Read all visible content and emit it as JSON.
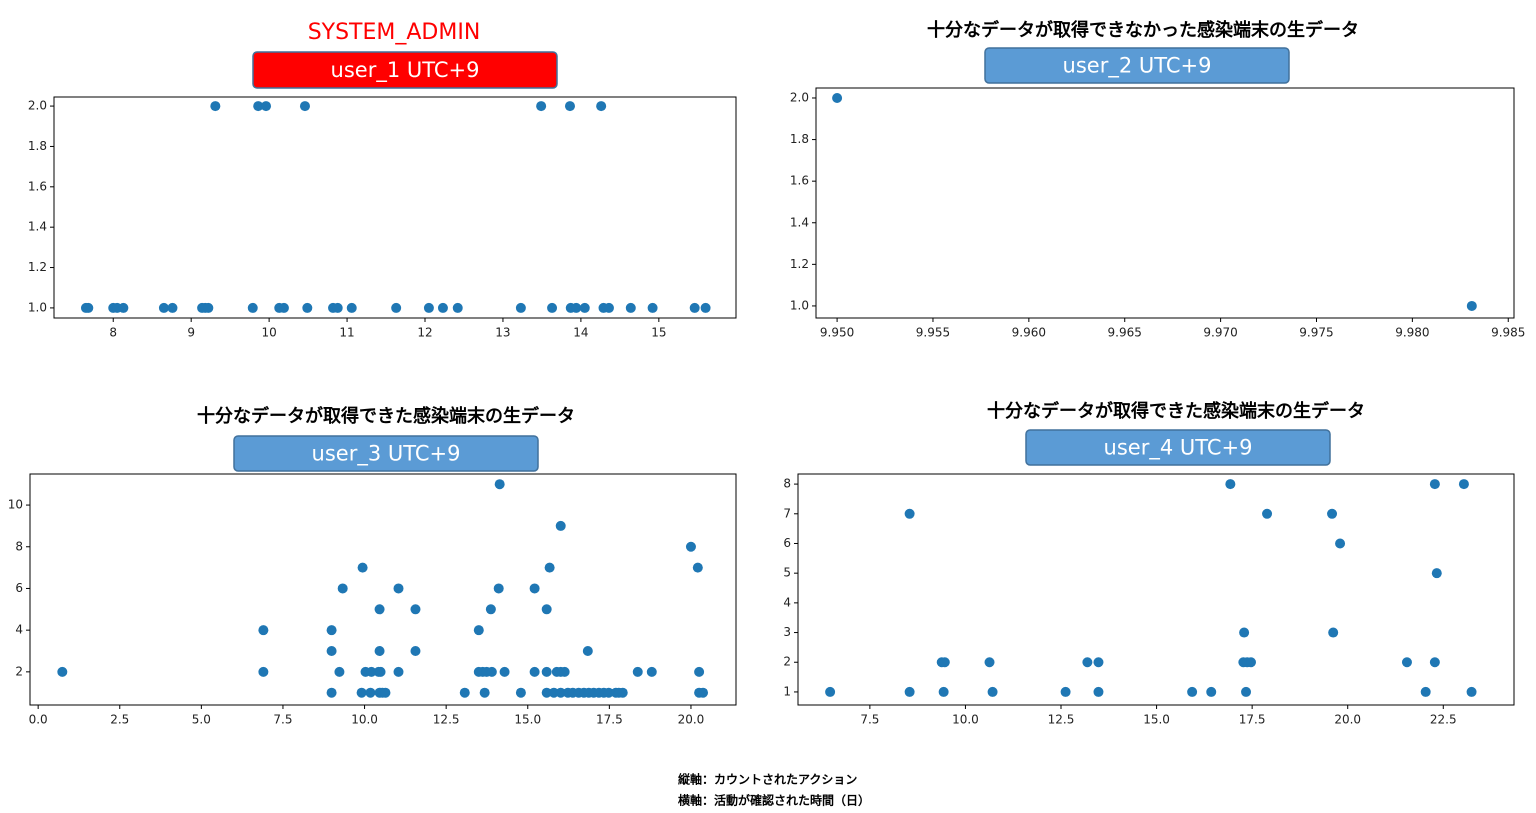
{
  "chart_data": [
    {
      "type": "scatter",
      "title": "SYSTEM_ADMIN",
      "title_color": "#ff0000",
      "subtitle": "user_1 UTC+9",
      "badge_color": "#ff0000",
      "color": "#1f77b4",
      "x": [
        9.31,
        9.86,
        9.96,
        10.46,
        13.49,
        13.86,
        14.26,
        7.65,
        7.68,
        8.0,
        8.05,
        8.13,
        8.65,
        8.76,
        9.14,
        9.18,
        9.22,
        9.79,
        10.13,
        10.19,
        10.49,
        10.82,
        10.88,
        11.06,
        11.63,
        12.05,
        12.23,
        12.42,
        13.23,
        13.63,
        13.87,
        13.94,
        14.05,
        14.29,
        14.36,
        14.64,
        14.92,
        15.46,
        15.6
      ],
      "values": [
        2,
        2,
        2,
        2,
        2,
        2,
        2,
        1,
        1,
        1,
        1,
        1,
        1,
        1,
        1,
        1,
        1,
        1,
        1,
        1,
        1,
        1,
        1,
        1,
        1,
        1,
        1,
        1,
        1,
        1,
        1,
        1,
        1,
        1,
        1,
        1,
        1,
        1,
        1
      ],
      "xlim": [
        7.24,
        15.99
      ],
      "xticks": [
        8,
        9,
        10,
        11,
        12,
        13,
        14,
        15
      ],
      "ylim": [
        0.95,
        2.045
      ],
      "yticks": [
        {
          "value": 1,
          "label": "1.0"
        },
        {
          "value": 1.2,
          "label": "1.2"
        },
        {
          "value": 1.4,
          "label": "1.4"
        },
        {
          "value": 1.6,
          "label": "1.6"
        },
        {
          "value": 1.8,
          "label": "1.8"
        },
        {
          "value": 2,
          "label": "2.0"
        }
      ]
    },
    {
      "type": "scatter",
      "title": "十分なデータが取得できなかった感染端末の生データ",
      "title_color": "#000000",
      "subtitle": "user_2 UTC+9",
      "badge_color": "#5b9bd5",
      "color": "#1f77b4",
      "x": [
        9.95,
        9.9831
      ],
      "values": [
        2,
        1
      ],
      "xlim": [
        9.9489,
        9.9853
      ],
      "xticks": [
        {
          "value": 9.95,
          "label": "9.950"
        },
        {
          "value": 9.955,
          "label": "9.955"
        },
        {
          "value": 9.96,
          "label": "9.960"
        },
        {
          "value": 9.965,
          "label": "9.965"
        },
        {
          "value": 9.97,
          "label": "9.970"
        },
        {
          "value": 9.975,
          "label": "9.975"
        },
        {
          "value": 9.98,
          "label": "9.980"
        },
        {
          "value": 9.985,
          "label": "9.985"
        }
      ],
      "ylim": [
        0.942,
        2.048
      ],
      "yticks": [
        {
          "value": 1,
          "label": "1.0"
        },
        {
          "value": 1.2,
          "label": "1.2"
        },
        {
          "value": 1.4,
          "label": "1.4"
        },
        {
          "value": 1.6,
          "label": "1.6"
        },
        {
          "value": 1.8,
          "label": "1.8"
        },
        {
          "value": 2,
          "label": "2.0"
        }
      ]
    },
    {
      "type": "scatter",
      "title": "十分なデータが取得できた感染端末の生データ",
      "title_color": "#000000",
      "subtitle": "user_3 UTC+9",
      "badge_color": "#5b9bd5",
      "color": "#1f77b4",
      "x": [
        0.74,
        6.9,
        6.9,
        8.99,
        8.99,
        8.99,
        9.23,
        9.33,
        9.94,
        9.91,
        10.03,
        10.18,
        10.21,
        10.43,
        10.46,
        10.46,
        10.46,
        10.49,
        10.55,
        10.64,
        11.04,
        11.04,
        11.56,
        11.56,
        13.07,
        13.5,
        13.5,
        13.62,
        13.68,
        13.74,
        13.87,
        13.9,
        14.11,
        14.14,
        14.29,
        14.79,
        15.21,
        15.21,
        15.58,
        15.58,
        15.58,
        15.67,
        15.89,
        16.01,
        16.01,
        16.13,
        15.8,
        16.01,
        16.23,
        16.38,
        16.56,
        16.72,
        16.87,
        17.02,
        17.18,
        17.33,
        17.48,
        17.7,
        17.79,
        17.91,
        16.84,
        18.37,
        18.8,
        20.0,
        20.21,
        20.25,
        20.25,
        20.37
      ],
      "values": [
        2,
        4,
        2,
        4,
        3,
        1,
        2,
        6,
        7,
        1,
        2,
        1,
        2,
        2,
        1,
        5,
        3,
        2,
        1,
        1,
        6,
        2,
        5,
        3,
        1,
        4,
        2,
        2,
        1,
        2,
        5,
        2,
        6,
        11,
        2,
        1,
        6,
        2,
        1,
        2,
        5,
        7,
        2,
        9,
        2,
        2,
        1,
        1,
        1,
        1,
        1,
        1,
        1,
        1,
        1,
        1,
        1,
        1,
        1,
        1,
        3,
        2,
        2,
        8,
        7,
        2,
        1,
        1
      ],
      "xlim": [
        -0.25,
        21.38
      ],
      "xticks": [
        {
          "value": 0,
          "label": "0.0"
        },
        2.5,
        {
          "value": 5,
          "label": "5.0"
        },
        7.5,
        {
          "value": 10,
          "label": "10.0"
        },
        12.5,
        {
          "value": 15,
          "label": "15.0"
        },
        17.5,
        {
          "value": 20,
          "label": "20.0"
        }
      ],
      "ylim": [
        0.41,
        11.49
      ],
      "yticks": [
        2,
        4,
        6,
        8,
        10
      ]
    },
    {
      "type": "scatter",
      "title": "十分なデータが取得できた感染端末の生データ",
      "title_color": "#000000",
      "subtitle": "user_4 UTC+9",
      "badge_color": "#5b9bd5",
      "color": "#1f77b4",
      "x": [
        6.46,
        8.54,
        8.54,
        9.38,
        9.46,
        9.43,
        10.63,
        10.71,
        12.62,
        13.19,
        13.48,
        13.48,
        15.93,
        16.43,
        16.93,
        17.29,
        17.27,
        17.37,
        17.47,
        17.34,
        17.89,
        19.59,
        19.62,
        19.8,
        21.55,
        22.04,
        22.28,
        22.28,
        22.33,
        23.04,
        23.24
      ],
      "values": [
        1,
        7,
        1,
        2,
        2,
        1,
        2,
        1,
        1,
        2,
        2,
        1,
        1,
        1,
        8,
        3,
        2,
        2,
        2,
        1,
        7,
        7,
        3,
        6,
        2,
        1,
        8,
        2,
        5,
        8,
        1
      ],
      "xlim": [
        5.62,
        24.35
      ],
      "xticks": [
        7.5,
        {
          "value": 10,
          "label": "10.0"
        },
        12.5,
        {
          "value": 15,
          "label": "15.0"
        },
        17.5,
        {
          "value": 20,
          "label": "20.0"
        },
        22.5
      ],
      "ylim": [
        0.56,
        8.34
      ],
      "yticks": [
        1,
        2,
        3,
        4,
        5,
        6,
        7,
        8
      ]
    }
  ],
  "notes": [
    "縦軸：カウントされたアクション",
    "横軸：活動が確認された時間（日）"
  ]
}
